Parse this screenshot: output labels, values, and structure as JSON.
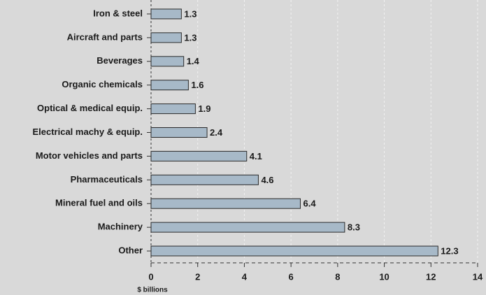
{
  "chart_data": {
    "type": "barh",
    "categories": [
      "Iron & steel",
      "Aircraft and parts",
      "Beverages",
      "Organic chemicals",
      "Optical & medical equip.",
      "Electrical machy & equip.",
      "Motor vehicles and parts",
      "Pharmaceuticals",
      "Mineral fuel and oils",
      "Machinery",
      "Other"
    ],
    "values": [
      1.3,
      1.3,
      1.4,
      1.6,
      1.9,
      2.4,
      4.1,
      4.6,
      6.4,
      8.3,
      12.3
    ],
    "color": "#a7b9c8",
    "xlabel": "$ billions",
    "xlim": [
      0,
      14
    ],
    "xticks": [
      0,
      2,
      4,
      6,
      8,
      10,
      12,
      14
    ],
    "grid": true
  }
}
